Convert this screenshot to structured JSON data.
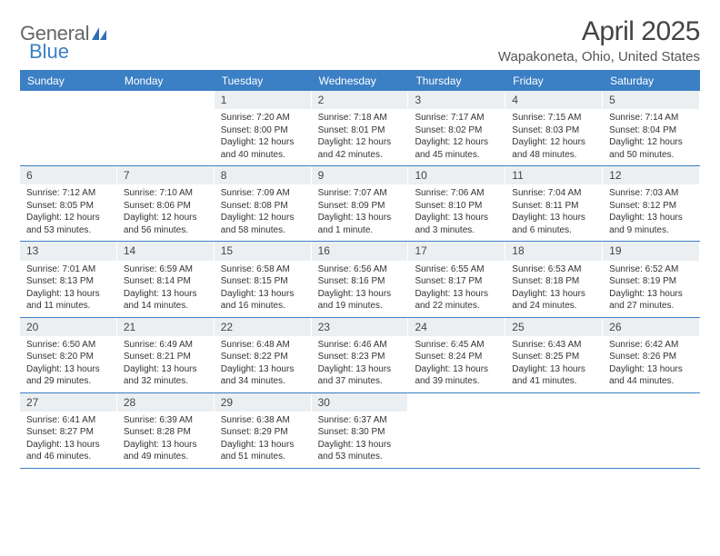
{
  "logo": {
    "text_general": "General",
    "text_blue": "Blue"
  },
  "title": "April 2025",
  "location": "Wapakoneta, Ohio, United States",
  "colors": {
    "header_bar": "#3b7fc4",
    "daynum_bg": "#eceff1",
    "text": "#333333",
    "title_text": "#444444",
    "row_border": "#3b7fc4"
  },
  "day_headers": [
    "Sunday",
    "Monday",
    "Tuesday",
    "Wednesday",
    "Thursday",
    "Friday",
    "Saturday"
  ],
  "weeks": [
    [
      {
        "n": "",
        "empty": true
      },
      {
        "n": "",
        "empty": true
      },
      {
        "n": "1",
        "sunrise": "7:20 AM",
        "sunset": "8:00 PM",
        "daylight": "12 hours and 40 minutes."
      },
      {
        "n": "2",
        "sunrise": "7:18 AM",
        "sunset": "8:01 PM",
        "daylight": "12 hours and 42 minutes."
      },
      {
        "n": "3",
        "sunrise": "7:17 AM",
        "sunset": "8:02 PM",
        "daylight": "12 hours and 45 minutes."
      },
      {
        "n": "4",
        "sunrise": "7:15 AM",
        "sunset": "8:03 PM",
        "daylight": "12 hours and 48 minutes."
      },
      {
        "n": "5",
        "sunrise": "7:14 AM",
        "sunset": "8:04 PM",
        "daylight": "12 hours and 50 minutes."
      }
    ],
    [
      {
        "n": "6",
        "sunrise": "7:12 AM",
        "sunset": "8:05 PM",
        "daylight": "12 hours and 53 minutes."
      },
      {
        "n": "7",
        "sunrise": "7:10 AM",
        "sunset": "8:06 PM",
        "daylight": "12 hours and 56 minutes."
      },
      {
        "n": "8",
        "sunrise": "7:09 AM",
        "sunset": "8:08 PM",
        "daylight": "12 hours and 58 minutes."
      },
      {
        "n": "9",
        "sunrise": "7:07 AM",
        "sunset": "8:09 PM",
        "daylight": "13 hours and 1 minute."
      },
      {
        "n": "10",
        "sunrise": "7:06 AM",
        "sunset": "8:10 PM",
        "daylight": "13 hours and 3 minutes."
      },
      {
        "n": "11",
        "sunrise": "7:04 AM",
        "sunset": "8:11 PM",
        "daylight": "13 hours and 6 minutes."
      },
      {
        "n": "12",
        "sunrise": "7:03 AM",
        "sunset": "8:12 PM",
        "daylight": "13 hours and 9 minutes."
      }
    ],
    [
      {
        "n": "13",
        "sunrise": "7:01 AM",
        "sunset": "8:13 PM",
        "daylight": "13 hours and 11 minutes."
      },
      {
        "n": "14",
        "sunrise": "6:59 AM",
        "sunset": "8:14 PM",
        "daylight": "13 hours and 14 minutes."
      },
      {
        "n": "15",
        "sunrise": "6:58 AM",
        "sunset": "8:15 PM",
        "daylight": "13 hours and 16 minutes."
      },
      {
        "n": "16",
        "sunrise": "6:56 AM",
        "sunset": "8:16 PM",
        "daylight": "13 hours and 19 minutes."
      },
      {
        "n": "17",
        "sunrise": "6:55 AM",
        "sunset": "8:17 PM",
        "daylight": "13 hours and 22 minutes."
      },
      {
        "n": "18",
        "sunrise": "6:53 AM",
        "sunset": "8:18 PM",
        "daylight": "13 hours and 24 minutes."
      },
      {
        "n": "19",
        "sunrise": "6:52 AM",
        "sunset": "8:19 PM",
        "daylight": "13 hours and 27 minutes."
      }
    ],
    [
      {
        "n": "20",
        "sunrise": "6:50 AM",
        "sunset": "8:20 PM",
        "daylight": "13 hours and 29 minutes."
      },
      {
        "n": "21",
        "sunrise": "6:49 AM",
        "sunset": "8:21 PM",
        "daylight": "13 hours and 32 minutes."
      },
      {
        "n": "22",
        "sunrise": "6:48 AM",
        "sunset": "8:22 PM",
        "daylight": "13 hours and 34 minutes."
      },
      {
        "n": "23",
        "sunrise": "6:46 AM",
        "sunset": "8:23 PM",
        "daylight": "13 hours and 37 minutes."
      },
      {
        "n": "24",
        "sunrise": "6:45 AM",
        "sunset": "8:24 PM",
        "daylight": "13 hours and 39 minutes."
      },
      {
        "n": "25",
        "sunrise": "6:43 AM",
        "sunset": "8:25 PM",
        "daylight": "13 hours and 41 minutes."
      },
      {
        "n": "26",
        "sunrise": "6:42 AM",
        "sunset": "8:26 PM",
        "daylight": "13 hours and 44 minutes."
      }
    ],
    [
      {
        "n": "27",
        "sunrise": "6:41 AM",
        "sunset": "8:27 PM",
        "daylight": "13 hours and 46 minutes."
      },
      {
        "n": "28",
        "sunrise": "6:39 AM",
        "sunset": "8:28 PM",
        "daylight": "13 hours and 49 minutes."
      },
      {
        "n": "29",
        "sunrise": "6:38 AM",
        "sunset": "8:29 PM",
        "daylight": "13 hours and 51 minutes."
      },
      {
        "n": "30",
        "sunrise": "6:37 AM",
        "sunset": "8:30 PM",
        "daylight": "13 hours and 53 minutes."
      },
      {
        "n": "",
        "empty": true
      },
      {
        "n": "",
        "empty": true
      },
      {
        "n": "",
        "empty": true
      }
    ]
  ],
  "labels": {
    "sunrise": "Sunrise:",
    "sunset": "Sunset:",
    "daylight": "Daylight:"
  }
}
